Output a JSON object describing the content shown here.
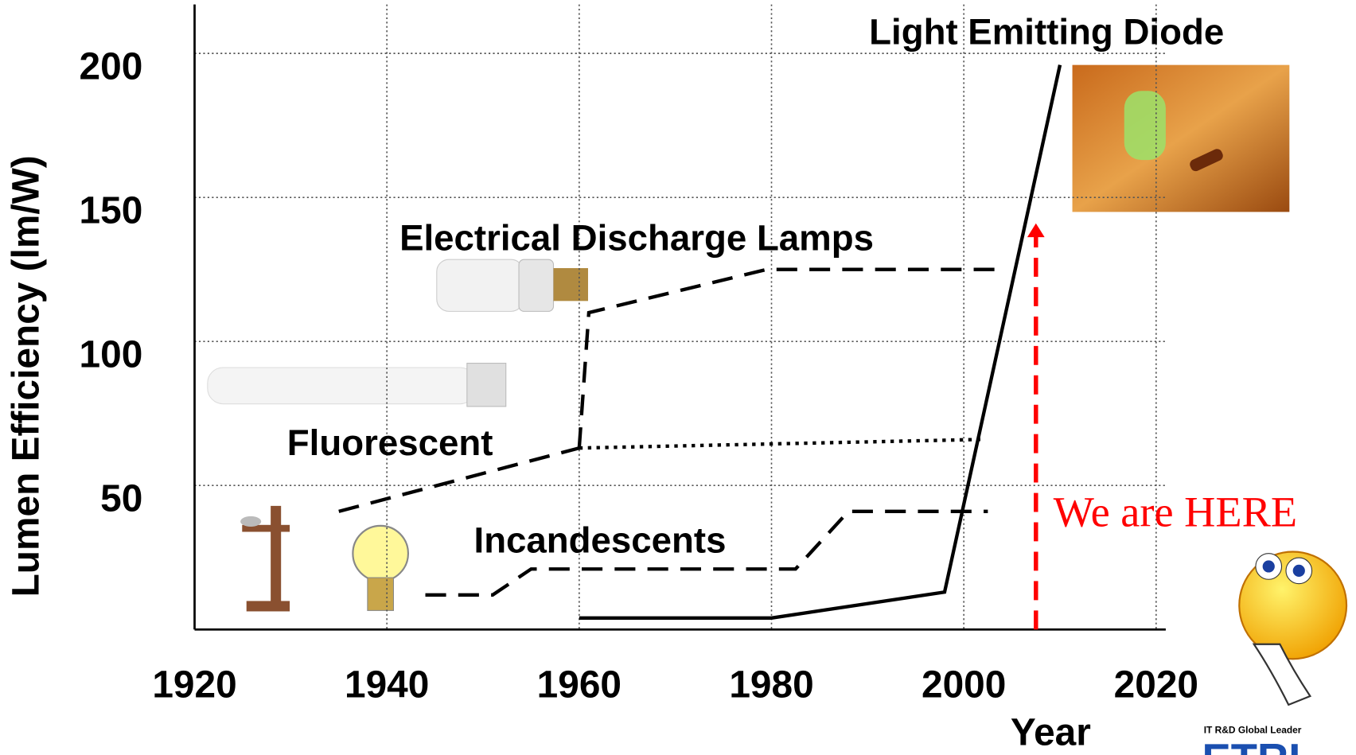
{
  "chart_data": {
    "type": "line",
    "x_label": "Year",
    "y_label": "Lumen Efficiency (lm/W)",
    "xlim": [
      1920,
      2021
    ],
    "ylim": [
      0,
      217
    ],
    "xticks": [
      1920,
      1940,
      1960,
      1980,
      2000,
      2020
    ],
    "yticks": [
      50,
      100,
      150,
      200
    ],
    "grid": true,
    "series": [
      {
        "name": "Incandescents",
        "color": "#000000",
        "dash": "dashed",
        "x": [
          1944,
          1951,
          1955,
          1982.5,
          1988,
          2002.5
        ],
        "values": [
          12,
          12,
          21,
          21,
          41,
          41
        ]
      },
      {
        "name": "Fluorescent",
        "color": "#000000",
        "dash": "dashed",
        "x": [
          1935,
          1960
        ],
        "values": [
          41,
          63
        ]
      },
      {
        "color": "#000000",
        "dash": "dotted",
        "x": [
          1960,
          2002
        ],
        "values": [
          63,
          66
        ]
      },
      {
        "name": "Electrical Discharge Lamps",
        "color": "#000000",
        "dash": "dashed",
        "x": [
          1960,
          1961,
          1979.5,
          2004
        ],
        "values": [
          63,
          110,
          125,
          125
        ]
      },
      {
        "name": "Light Emitting Diode",
        "color": "#000000",
        "dash": "solid",
        "x": [
          1960,
          1980,
          1998,
          2010
        ],
        "values": [
          4,
          4,
          13,
          196
        ]
      }
    ],
    "annotation": {
      "text": "We are HERE",
      "color": "#ff0000",
      "x": 2007.5,
      "y": 141
    },
    "logo": {
      "tagline": "IT R&D Global Leader",
      "name": "ETRI"
    }
  }
}
